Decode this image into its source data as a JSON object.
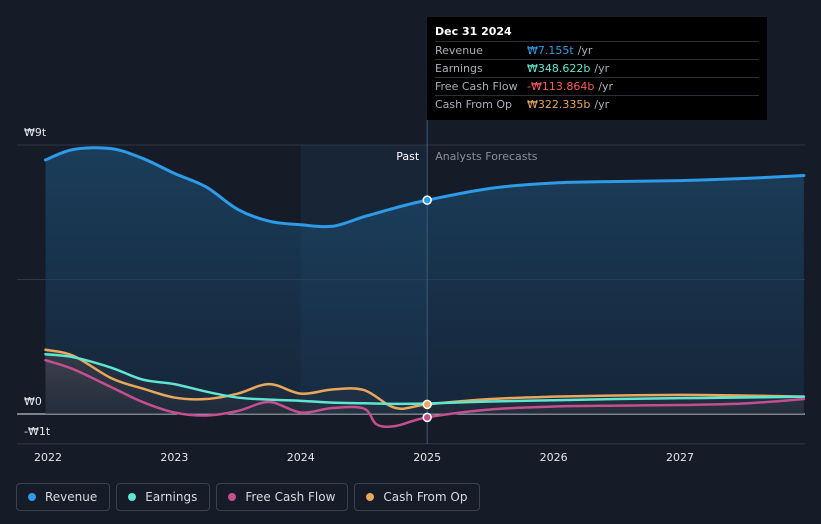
{
  "colors": {
    "revenue": "#2d9be8",
    "earnings": "#5ee6d2",
    "free_cash_flow": "#c44f8f",
    "cash_from_op": "#e8a75a",
    "negative_value": "#ff5a5a"
  },
  "tooltip": {
    "date": "Dec 31 2024",
    "rows": [
      {
        "label": "Revenue",
        "value": "₩7.155t",
        "unit": "/yr",
        "color": "#2d9be8"
      },
      {
        "label": "Earnings",
        "value": "₩348.622b",
        "unit": "/yr",
        "color": "#5ee6d2"
      },
      {
        "label": "Free Cash Flow",
        "value": "-₩113.864b",
        "unit": "/yr",
        "color": "#ff5a5a"
      },
      {
        "label": "Cash From Op",
        "value": "₩322.335b",
        "unit": "/yr",
        "color": "#e8a75a"
      }
    ]
  },
  "legend": [
    {
      "label": "Revenue",
      "color": "#2d9be8"
    },
    {
      "label": "Earnings",
      "color": "#5ee6d2"
    },
    {
      "label": "Free Cash Flow",
      "color": "#c44f8f"
    },
    {
      "label": "Cash From Op",
      "color": "#e8a75a"
    }
  ],
  "chart_data": {
    "type": "area",
    "title": "",
    "xlabel": "",
    "ylabel": "",
    "currency": "KRW",
    "x_ticks": [
      2022,
      2023,
      2024,
      2025,
      2026,
      2027
    ],
    "y_tick_labels": [
      "₩9t",
      "₩0",
      "-₩1t"
    ],
    "y_ticks_values": [
      9,
      0,
      -1
    ],
    "ylim": [
      -1,
      9
    ],
    "xlim": [
      2021.98,
      2027.98
    ],
    "past_label": "Past",
    "forecast_label": "Analysts Forecasts",
    "divider_x": 2025.0,
    "highlight_range": [
      2024.0,
      2025.0
    ],
    "unit": "trillion KRW",
    "series": [
      {
        "name": "Revenue",
        "x": [
          2021.98,
          2022.2,
          2022.5,
          2022.75,
          2023.0,
          2023.25,
          2023.5,
          2023.75,
          2024.0,
          2024.25,
          2024.5,
          2024.75,
          2025.0,
          2025.5,
          2026.0,
          2026.5,
          2027.0,
          2027.5,
          2027.98
        ],
        "values": [
          8.5,
          8.85,
          8.88,
          8.55,
          8.05,
          7.6,
          6.85,
          6.45,
          6.33,
          6.28,
          6.6,
          6.9,
          7.155,
          7.55,
          7.73,
          7.78,
          7.81,
          7.88,
          7.98
        ]
      },
      {
        "name": "Earnings",
        "x": [
          2021.98,
          2022.2,
          2022.5,
          2022.75,
          2023.0,
          2023.25,
          2023.5,
          2023.75,
          2024.0,
          2024.25,
          2024.5,
          2024.75,
          2025.0,
          2025.5,
          2026.0,
          2026.5,
          2027.0,
          2027.5,
          2027.98
        ],
        "values": [
          2.0,
          1.9,
          1.55,
          1.15,
          1.0,
          0.75,
          0.55,
          0.48,
          0.44,
          0.38,
          0.36,
          0.34,
          0.35,
          0.42,
          0.46,
          0.5,
          0.53,
          0.55,
          0.58
        ]
      },
      {
        "name": "Free Cash Flow",
        "x": [
          2021.98,
          2022.2,
          2022.5,
          2022.75,
          2023.0,
          2023.25,
          2023.5,
          2023.75,
          2024.0,
          2024.25,
          2024.5,
          2024.6,
          2024.75,
          2025.0,
          2025.5,
          2026.0,
          2026.5,
          2027.0,
          2027.5,
          2027.98
        ],
        "values": [
          1.8,
          1.5,
          0.9,
          0.4,
          0.05,
          -0.05,
          0.1,
          0.4,
          0.05,
          0.2,
          0.18,
          -0.35,
          -0.4,
          -0.114,
          0.15,
          0.25,
          0.28,
          0.3,
          0.35,
          0.5
        ]
      },
      {
        "name": "Cash From Op",
        "x": [
          2021.98,
          2022.2,
          2022.5,
          2022.75,
          2023.0,
          2023.25,
          2023.5,
          2023.75,
          2024.0,
          2024.25,
          2024.5,
          2024.75,
          2025.0,
          2025.5,
          2026.0,
          2026.5,
          2027.0,
          2027.5,
          2027.98
        ],
        "values": [
          2.15,
          1.95,
          1.2,
          0.85,
          0.55,
          0.5,
          0.68,
          1.0,
          0.68,
          0.82,
          0.8,
          0.2,
          0.322,
          0.5,
          0.58,
          0.62,
          0.64,
          0.62,
          0.58
        ]
      }
    ]
  }
}
